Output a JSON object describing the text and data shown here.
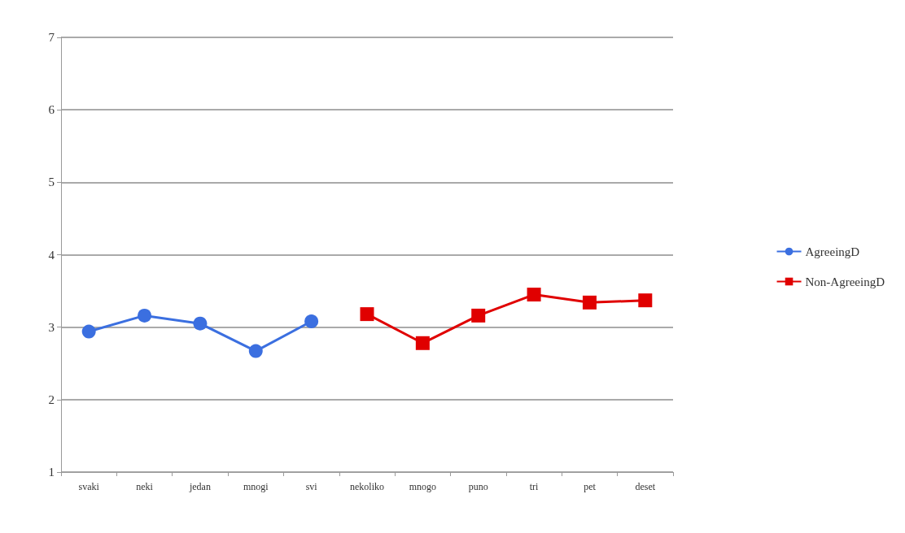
{
  "chart_data": {
    "type": "line",
    "categories": [
      "svaki",
      "neki",
      "jedan",
      "mnogi",
      "svi",
      "nekoliko",
      "mnogo",
      "puno",
      "tri",
      "pet",
      "deset"
    ],
    "series": [
      {
        "name": "AgreeingD",
        "color": "#3b6fe0",
        "marker": "circle",
        "values": [
          2.94,
          3.16,
          3.05,
          2.67,
          3.08,
          null,
          null,
          null,
          null,
          null,
          null
        ]
      },
      {
        "name": "Non-AgreeingD",
        "color": "#e00000",
        "marker": "square",
        "values": [
          null,
          null,
          null,
          null,
          null,
          3.18,
          2.78,
          3.16,
          3.45,
          3.34,
          3.37
        ]
      }
    ],
    "ylim": [
      1,
      7
    ],
    "yticks": [
      1,
      2,
      3,
      4,
      5,
      6,
      7
    ],
    "grid": "y",
    "legend": "right",
    "line_style": "solid"
  }
}
